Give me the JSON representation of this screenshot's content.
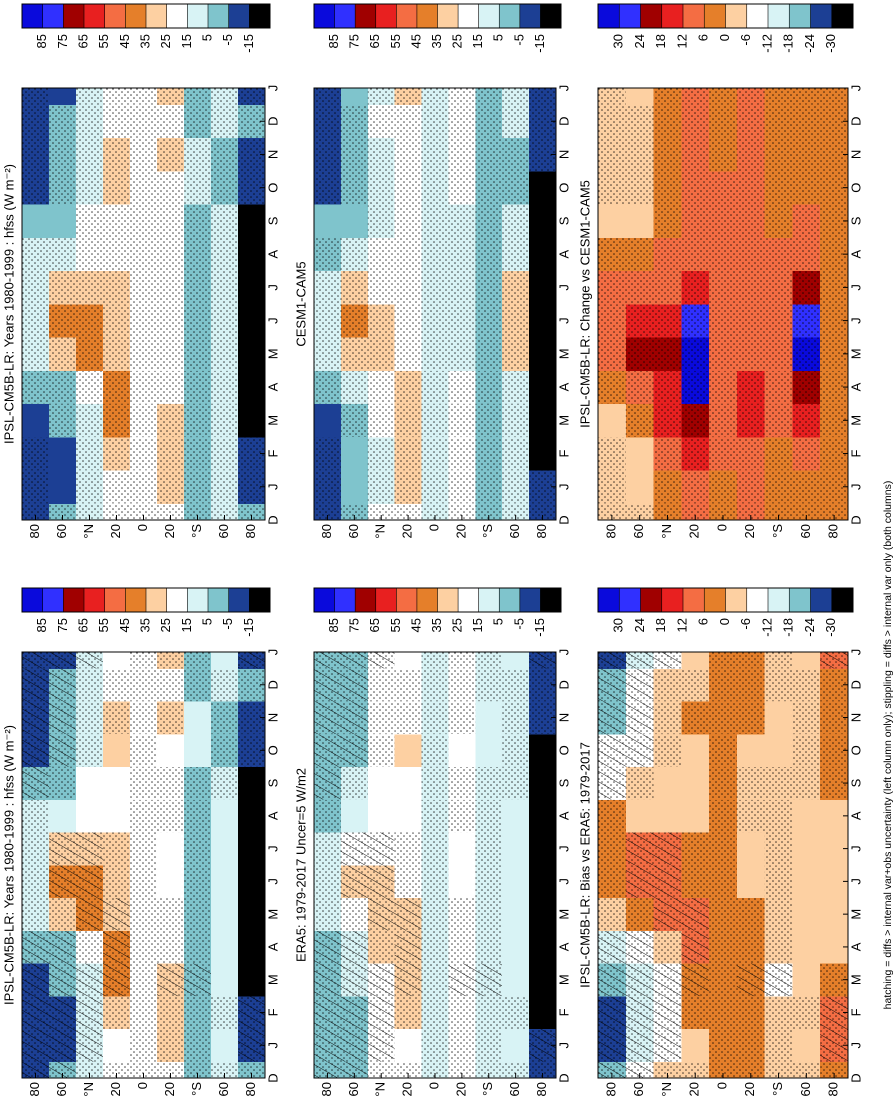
{
  "chart_data": [
    {
      "type": "heatmap",
      "title": "IPSL-CM5B-LR: Years 1980-1999 : hfss (W m⁻²)",
      "hatching": false,
      "categories": [
        "D",
        "J",
        "F",
        "M",
        "A",
        "M",
        "J",
        "J",
        "A",
        "S",
        "O",
        "N",
        "D",
        "J"
      ],
      "y": [
        80,
        60,
        40,
        20,
        0,
        -20,
        -40,
        -60,
        -80
      ],
      "ylim": [
        90,
        -90
      ],
      "yticks": [
        80,
        60,
        {
          "value": 40,
          "label": "°N"
        },
        20,
        0,
        {
          "value": -20,
          "label": "20"
        },
        {
          "value": -40,
          "label": "°S"
        },
        {
          "value": -60,
          "label": "60"
        },
        {
          "value": -80,
          "label": "80"
        }
      ],
      "levels": [
        85,
        75,
        65,
        55,
        45,
        35,
        25,
        15,
        5,
        -5,
        -15
      ],
      "colors": [
        "#0a0adc",
        "#3030ff",
        "#a00000",
        "#e82020",
        "#f46d43",
        "#e57f2a",
        "#fdd0a2",
        "#ffffff",
        "#d8f3f5",
        "#7fc4cc",
        "#1c3f94",
        "#000000"
      ],
      "z": [
        [
          -10,
          -12,
          -12,
          -10,
          -3,
          8,
          12,
          12,
          10,
          0,
          -5,
          -8,
          -10,
          -12
        ],
        [
          -2,
          -8,
          -8,
          -3,
          5,
          30,
          38,
          30,
          12,
          5,
          0,
          -2,
          -2,
          -8
        ],
        [
          15,
          12,
          12,
          15,
          25,
          38,
          40,
          30,
          20,
          18,
          15,
          15,
          15,
          12
        ],
        [
          20,
          25,
          30,
          38,
          40,
          35,
          30,
          28,
          25,
          25,
          28,
          28,
          20,
          25
        ],
        [
          18,
          18,
          18,
          20,
          20,
          18,
          18,
          18,
          18,
          18,
          18,
          18,
          18,
          18
        ],
        [
          25,
          28,
          30,
          28,
          22,
          20,
          18,
          18,
          18,
          18,
          22,
          28,
          25,
          28
        ],
        [
          5,
          5,
          3,
          2,
          3,
          3,
          3,
          3,
          3,
          5,
          8,
          8,
          5,
          5
        ],
        [
          8,
          10,
          10,
          12,
          12,
          15,
          15,
          12,
          10,
          8,
          5,
          5,
          8,
          10
        ],
        [
          0,
          -5,
          -12,
          -20,
          -25,
          -25,
          -25,
          -25,
          -25,
          -20,
          -10,
          -5,
          0,
          -5
        ]
      ]
    },
    {
      "type": "heatmap",
      "title": "CESM1-CAM5",
      "hatching": false,
      "categories": [
        "D",
        "J",
        "F",
        "M",
        "A",
        "M",
        "J",
        "J",
        "A",
        "S",
        "O",
        "N",
        "D",
        "J"
      ],
      "y": [
        80,
        60,
        40,
        20,
        0,
        -20,
        -40,
        -60,
        -80
      ],
      "ylim": [
        90,
        -90
      ],
      "yticks": [
        80,
        60,
        {
          "value": 40,
          "label": "°N"
        },
        20,
        0,
        {
          "value": -20,
          "label": "20"
        },
        {
          "value": -40,
          "label": "°S"
        },
        {
          "value": -60,
          "label": "60"
        },
        {
          "value": -80,
          "label": "80"
        }
      ],
      "levels": [
        85,
        75,
        65,
        55,
        45,
        35,
        25,
        15,
        5,
        -5,
        -15
      ],
      "colors": [
        "#0a0adc",
        "#3030ff",
        "#a00000",
        "#e82020",
        "#f46d43",
        "#e57f2a",
        "#fdd0a2",
        "#ffffff",
        "#d8f3f5",
        "#7fc4cc",
        "#1c3f94",
        "#000000"
      ],
      "z": [
        [
          -8,
          -8,
          -8,
          -5,
          0,
          10,
          12,
          10,
          5,
          -3,
          -8,
          -8,
          -8,
          -8
        ],
        [
          0,
          -3,
          -3,
          0,
          15,
          35,
          38,
          28,
          10,
          5,
          0,
          0,
          0,
          -3
        ],
        [
          18,
          15,
          15,
          18,
          25,
          30,
          30,
          25,
          18,
          15,
          15,
          15,
          18,
          15
        ],
        [
          25,
          30,
          35,
          35,
          28,
          22,
          20,
          20,
          22,
          22,
          25,
          25,
          25,
          30
        ],
        [
          15,
          15,
          15,
          15,
          15,
          15,
          15,
          15,
          15,
          15,
          15,
          15,
          15,
          15
        ],
        [
          20,
          22,
          22,
          20,
          18,
          15,
          15,
          15,
          15,
          15,
          18,
          20,
          20,
          22
        ],
        [
          3,
          3,
          3,
          3,
          3,
          3,
          3,
          3,
          3,
          3,
          3,
          3,
          3,
          3
        ],
        [
          10,
          10,
          12,
          15,
          15,
          28,
          30,
          28,
          15,
          10,
          5,
          5,
          10,
          10
        ],
        [
          -5,
          -10,
          -20,
          -25,
          -25,
          -25,
          -25,
          -25,
          -25,
          -25,
          -20,
          -10,
          -5,
          -10
        ]
      ]
    },
    {
      "type": "heatmap",
      "title": "IPSL-CM5B-LR: Change vs CESM1-CAM5",
      "hatching": false,
      "categories": [
        "D",
        "J",
        "F",
        "M",
        "A",
        "M",
        "J",
        "J",
        "A",
        "S",
        "O",
        "N",
        "D",
        "J"
      ],
      "y": [
        80,
        60,
        40,
        20,
        0,
        -20,
        -40,
        -60,
        -80
      ],
      "ylim": [
        90,
        -90
      ],
      "yticks": [
        80,
        60,
        {
          "value": 40,
          "label": "°N"
        },
        20,
        0,
        {
          "value": -20,
          "label": "20"
        },
        {
          "value": -40,
          "label": "°S"
        },
        {
          "value": -60,
          "label": "60"
        },
        {
          "value": -80,
          "label": "80"
        }
      ],
      "levels": [
        30,
        24,
        18,
        12,
        6,
        0,
        -6,
        -12,
        -18,
        -24,
        -30
      ],
      "colors": [
        "#0a0adc",
        "#3030ff",
        "#a00000",
        "#e82020",
        "#f46d43",
        "#e57f2a",
        "#fdd0a2",
        "#ffffff",
        "#d8f3f5",
        "#7fc4cc",
        "#1c3f94",
        "#000000"
      ],
      "z": [
        [
          -3,
          -3,
          -3,
          0,
          5,
          8,
          10,
          8,
          5,
          0,
          -3,
          -3,
          -3,
          -3
        ],
        [
          -5,
          0,
          0,
          5,
          12,
          20,
          14,
          10,
          5,
          0,
          -3,
          -5,
          -5,
          0
        ],
        [
          2,
          5,
          8,
          15,
          18,
          20,
          15,
          10,
          8,
          5,
          3,
          3,
          2,
          5
        ],
        [
          8,
          10,
          15,
          20,
          31,
          35,
          25,
          15,
          12,
          12,
          10,
          10,
          8,
          10
        ],
        [
          5,
          5,
          8,
          10,
          12,
          10,
          8,
          8,
          8,
          8,
          8,
          5,
          5,
          5
        ],
        [
          10,
          12,
          12,
          15,
          15,
          12,
          12,
          12,
          12,
          10,
          10,
          12,
          10,
          12
        ],
        [
          5,
          5,
          5,
          8,
          8,
          8,
          8,
          8,
          8,
          5,
          5,
          5,
          5,
          5
        ],
        [
          3,
          5,
          8,
          15,
          20,
          32,
          25,
          20,
          10,
          8,
          5,
          3,
          3,
          5
        ],
        [
          2,
          3,
          5,
          5,
          5,
          5,
          5,
          5,
          5,
          5,
          5,
          3,
          2,
          3
        ]
      ]
    },
    {
      "type": "heatmap",
      "title": "IPSL-CM5B-LR: Years 1980-1999 : hfss (W m⁻²)",
      "hatching": true,
      "categories": [
        "D",
        "J",
        "F",
        "M",
        "A",
        "M",
        "J",
        "J",
        "A",
        "S",
        "O",
        "N",
        "D",
        "J"
      ],
      "y": [
        80,
        60,
        40,
        20,
        0,
        -20,
        -40,
        -60,
        -80
      ],
      "ylim": [
        90,
        -90
      ],
      "yticks": [
        80,
        60,
        {
          "value": 40,
          "label": "°N"
        },
        20,
        0,
        {
          "value": -20,
          "label": "20"
        },
        {
          "value": -40,
          "label": "°S"
        },
        {
          "value": -60,
          "label": "60"
        },
        {
          "value": -80,
          "label": "80"
        }
      ],
      "levels": [
        85,
        75,
        65,
        55,
        45,
        35,
        25,
        15,
        5,
        -5,
        -15
      ],
      "colors": [
        "#0a0adc",
        "#3030ff",
        "#a00000",
        "#e82020",
        "#f46d43",
        "#e57f2a",
        "#fdd0a2",
        "#ffffff",
        "#d8f3f5",
        "#7fc4cc",
        "#1c3f94",
        "#000000"
      ],
      "z": [
        [
          -10,
          -12,
          -12,
          -10,
          -3,
          8,
          12,
          12,
          10,
          0,
          -5,
          -8,
          -10,
          -12
        ],
        [
          -2,
          -8,
          -8,
          -3,
          5,
          30,
          38,
          30,
          12,
          5,
          0,
          -2,
          -2,
          -8
        ],
        [
          15,
          12,
          12,
          15,
          25,
          38,
          40,
          30,
          20,
          18,
          15,
          15,
          15,
          12
        ],
        [
          20,
          25,
          30,
          38,
          40,
          35,
          30,
          28,
          25,
          25,
          28,
          28,
          20,
          25
        ],
        [
          18,
          18,
          18,
          20,
          20,
          18,
          18,
          18,
          18,
          18,
          18,
          18,
          18,
          18
        ],
        [
          25,
          28,
          30,
          28,
          22,
          20,
          18,
          18,
          18,
          18,
          22,
          28,
          25,
          28
        ],
        [
          5,
          5,
          3,
          2,
          3,
          3,
          3,
          3,
          3,
          5,
          8,
          8,
          5,
          5
        ],
        [
          8,
          10,
          10,
          12,
          12,
          15,
          15,
          12,
          10,
          8,
          5,
          5,
          8,
          10
        ],
        [
          0,
          -5,
          -12,
          -20,
          -25,
          -25,
          -25,
          -25,
          -25,
          -20,
          -10,
          -5,
          0,
          -5
        ]
      ]
    },
    {
      "type": "heatmap",
      "title": "ERA5: 1979-2017 Uncer=5 W/m2",
      "hatching": true,
      "categories": [
        "D",
        "J",
        "F",
        "M",
        "A",
        "M",
        "J",
        "J",
        "A",
        "S",
        "O",
        "N",
        "D",
        "J"
      ],
      "y": [
        80,
        60,
        40,
        20,
        0,
        -20,
        -40,
        -60,
        -80
      ],
      "ylim": [
        90,
        -90
      ],
      "yticks": [
        80,
        60,
        {
          "value": 40,
          "label": "°N"
        },
        20,
        0,
        {
          "value": -20,
          "label": "20"
        },
        {
          "value": -40,
          "label": "°S"
        },
        {
          "value": -60,
          "label": "60"
        },
        {
          "value": -80,
          "label": "80"
        }
      ],
      "levels": [
        85,
        75,
        65,
        55,
        45,
        35,
        25,
        15,
        5,
        -5,
        -15
      ],
      "colors": [
        "#0a0adc",
        "#3030ff",
        "#a00000",
        "#e82020",
        "#f46d43",
        "#e57f2a",
        "#fdd0a2",
        "#ffffff",
        "#d8f3f5",
        "#7fc4cc",
        "#1c3f94",
        "#000000"
      ],
      "z": [
        [
          0,
          0,
          0,
          0,
          5,
          8,
          10,
          8,
          5,
          3,
          0,
          0,
          0,
          0
        ],
        [
          5,
          5,
          5,
          8,
          15,
          25,
          28,
          22,
          12,
          8,
          5,
          5,
          5,
          5
        ],
        [
          20,
          18,
          18,
          22,
          28,
          30,
          28,
          22,
          20,
          18,
          18,
          18,
          20,
          18
        ],
        [
          22,
          25,
          28,
          32,
          32,
          28,
          25,
          25,
          25,
          25,
          28,
          25,
          22,
          25
        ],
        [
          15,
          15,
          15,
          15,
          15,
          15,
          15,
          15,
          15,
          15,
          15,
          15,
          15,
          15
        ],
        [
          22,
          25,
          25,
          22,
          20,
          18,
          18,
          18,
          20,
          20,
          22,
          25,
          22,
          25
        ],
        [
          8,
          8,
          8,
          8,
          8,
          8,
          8,
          8,
          8,
          8,
          8,
          8,
          8,
          8
        ],
        [
          10,
          10,
          12,
          12,
          12,
          15,
          15,
          12,
          10,
          10,
          10,
          10,
          10,
          10
        ],
        [
          -5,
          -12,
          -20,
          -25,
          -25,
          -25,
          -25,
          -25,
          -25,
          -25,
          -15,
          -8,
          -5,
          -12
        ]
      ]
    },
    {
      "type": "heatmap",
      "title": "IPSL-CM5B-LR: Bias vs ERA5: 1979-2017",
      "hatching": true,
      "categories": [
        "D",
        "J",
        "F",
        "M",
        "A",
        "M",
        "J",
        "J",
        "A",
        "S",
        "O",
        "N",
        "D",
        "J"
      ],
      "y": [
        80,
        60,
        40,
        20,
        0,
        -20,
        -40,
        -60,
        -80
      ],
      "ylim": [
        90,
        -90
      ],
      "yticks": [
        80,
        60,
        {
          "value": 40,
          "label": "°N"
        },
        20,
        0,
        {
          "value": -20,
          "label": "20"
        },
        {
          "value": -40,
          "label": "°S"
        },
        {
          "value": -60,
          "label": "60"
        },
        {
          "value": -80,
          "label": "80"
        }
      ],
      "levels": [
        30,
        24,
        18,
        12,
        6,
        0,
        -6,
        -12,
        -18,
        -24,
        -30
      ],
      "colors": [
        "#0a0adc",
        "#3030ff",
        "#a00000",
        "#e82020",
        "#f46d43",
        "#e57f2a",
        "#fdd0a2",
        "#ffffff",
        "#d8f3f5",
        "#7fc4cc",
        "#1c3f94",
        "#000000"
      ],
      "z": [
        [
          -22,
          -25,
          -25,
          -20,
          -12,
          -3,
          2,
          4,
          5,
          -6,
          -10,
          -18,
          -22,
          -25
        ],
        [
          -10,
          -15,
          -15,
          -12,
          -8,
          5,
          10,
          8,
          0,
          -5,
          -8,
          -10,
          -10,
          -15
        ],
        [
          -5,
          -6,
          -6,
          -7,
          -3,
          8,
          12,
          8,
          0,
          0,
          -3,
          -3,
          -5,
          -6
        ],
        [
          -2,
          0,
          2,
          6,
          8,
          7,
          5,
          3,
          0,
          0,
          0,
          3,
          -2,
          0
        ],
        [
          3,
          3,
          3,
          5,
          5,
          3,
          3,
          3,
          3,
          3,
          3,
          3,
          3,
          3
        ],
        [
          3,
          3,
          5,
          6,
          2,
          2,
          0,
          0,
          -2,
          -2,
          0,
          3,
          3,
          3
        ],
        [
          -3,
          -3,
          -5,
          -6,
          -5,
          -5,
          -5,
          -5,
          -5,
          -3,
          0,
          0,
          -3,
          -3
        ],
        [
          -2,
          0,
          -2,
          0,
          0,
          0,
          0,
          0,
          0,
          -2,
          -5,
          -5,
          -2,
          0
        ],
        [
          5,
          7,
          8,
          5,
          0,
          0,
          0,
          0,
          0,
          5,
          5,
          3,
          5,
          7
        ]
      ]
    }
  ],
  "caption": "hatching = diffs > internal var+obs uncertainty (left column only); stippling = diffs > internal var only (both columns)"
}
